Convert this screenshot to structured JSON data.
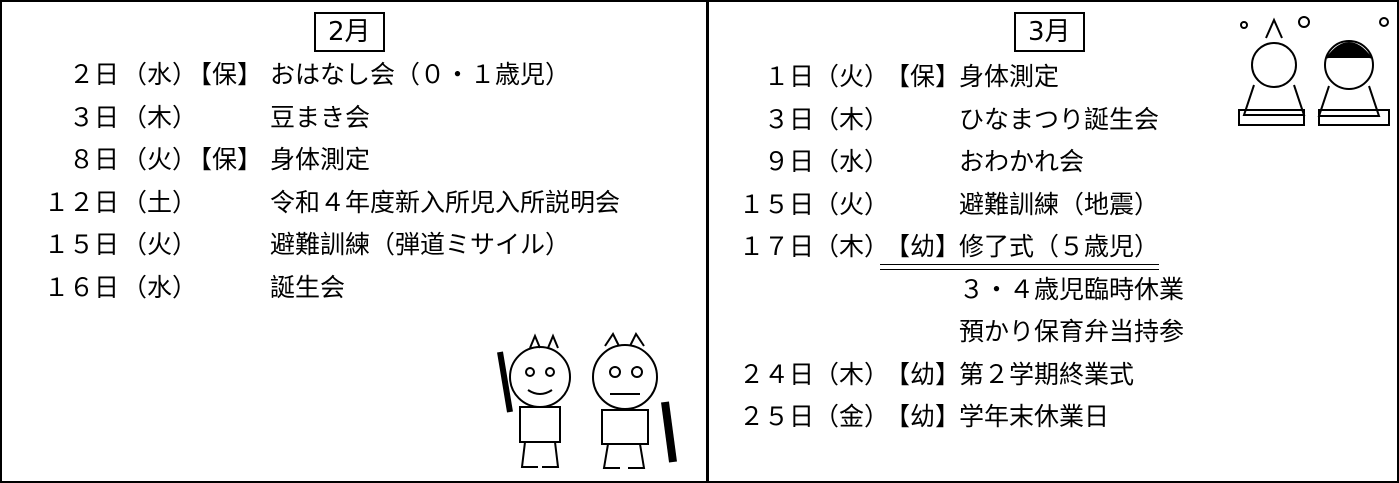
{
  "february": {
    "month": "2月",
    "events": [
      {
        "date": "２日",
        "weekday": "（水）",
        "tag": "【保】",
        "text": "おはなし会（０・１歳児）"
      },
      {
        "date": "３日",
        "weekday": "（木）",
        "text": "豆まき会"
      },
      {
        "date": "８日",
        "weekday": "（火）",
        "tag": "【保】",
        "text": "身体測定"
      },
      {
        "date": "１２日",
        "weekday": "（土）",
        "text": "令和４年度新入所児入所説明会"
      },
      {
        "date": "１５日",
        "weekday": "（火）",
        "text": "避難訓練（弾道ミサイル）"
      },
      {
        "date": "１６日",
        "weekday": "（水）",
        "text": "誕生会"
      }
    ]
  },
  "march": {
    "month": "3月",
    "events": [
      {
        "date": "１日",
        "weekday": "（火）",
        "tag": "【保】",
        "text": "身体測定"
      },
      {
        "date": "３日",
        "weekday": "（木）",
        "text": "ひなまつり誕生会"
      },
      {
        "date": "９日",
        "weekday": "（水）",
        "text": "おわかれ会"
      },
      {
        "date": "１５日",
        "weekday": "（火）",
        "text": "避難訓練（地震）"
      },
      {
        "date": "１７日",
        "weekday": "（木）",
        "tag": "【幼】",
        "text": "修了式（５歳児）",
        "underline": true
      },
      {
        "text": "３・４歳児臨時休業"
      },
      {
        "text": "預かり保育弁当持参"
      },
      {
        "date": "２４日",
        "weekday": "（木）",
        "tag": "【幼】",
        "text": "第２学期終業式"
      },
      {
        "date": "２５日",
        "weekday": "（金）",
        "tag": "【幼】",
        "text": "学年末休業日"
      }
    ]
  }
}
